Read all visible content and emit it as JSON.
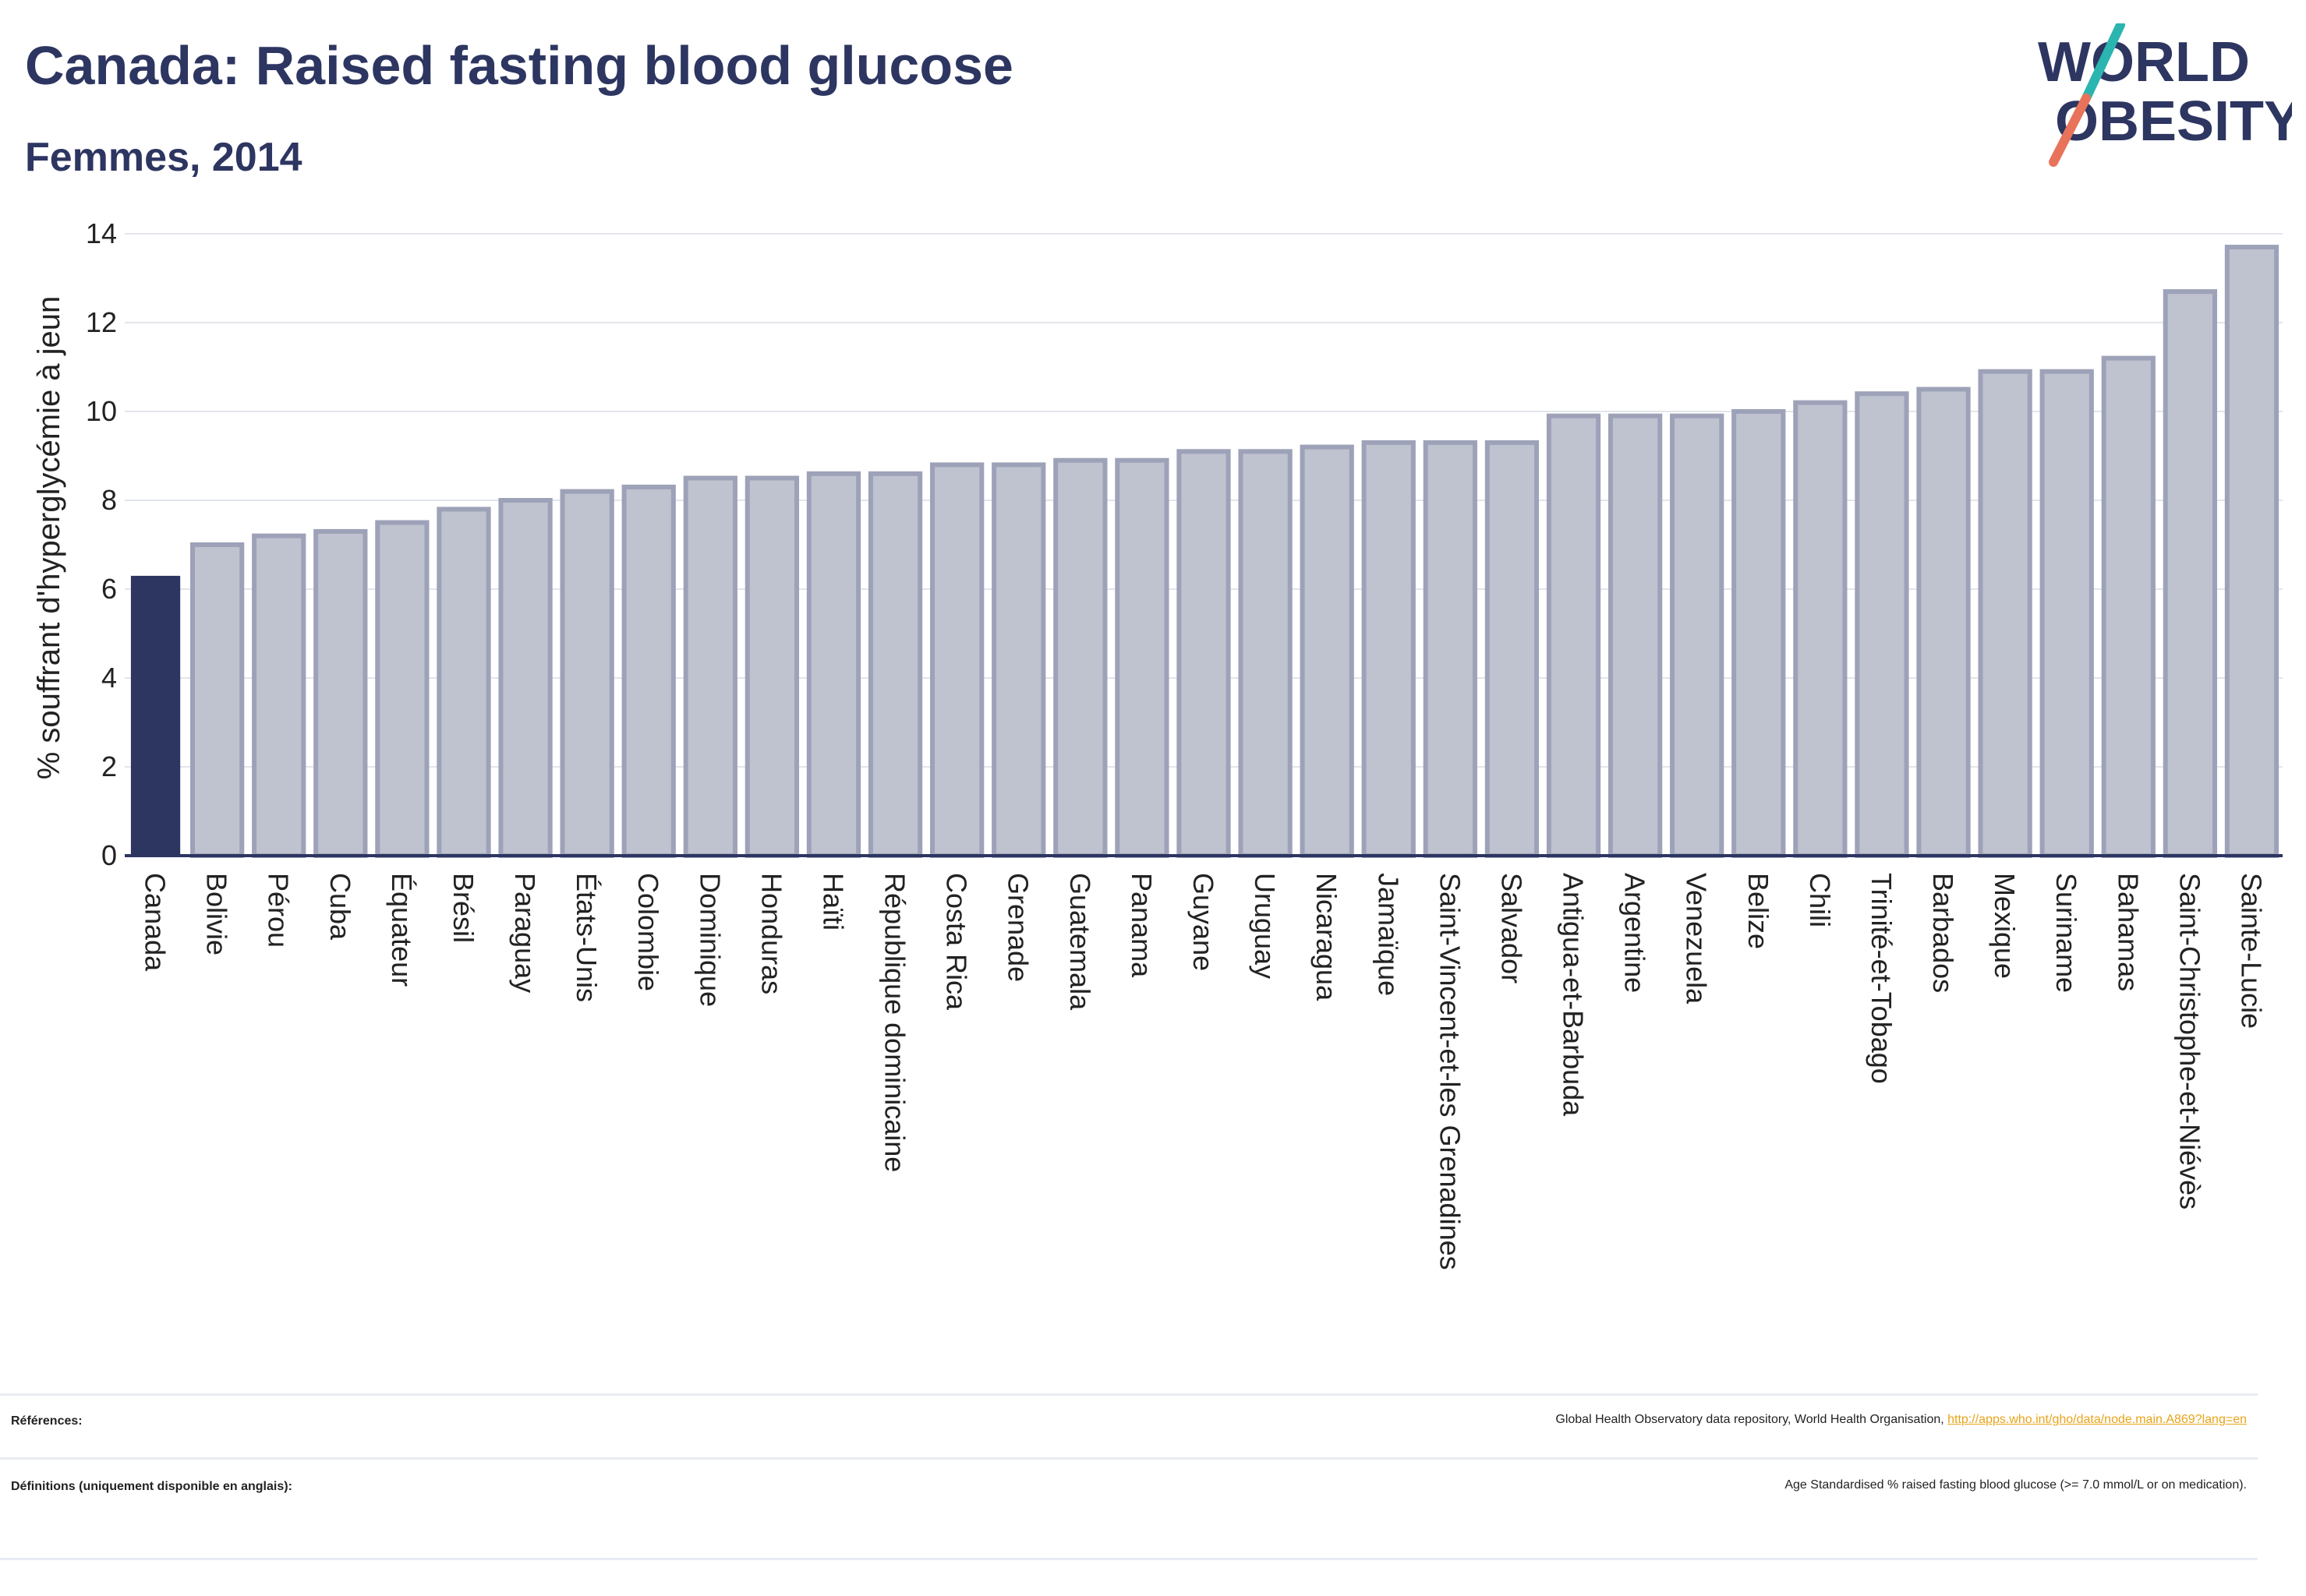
{
  "header": {
    "title": "Canada: Raised fasting blood glucose",
    "subtitle": "Femmes, 2014"
  },
  "logo": {
    "line1": "WORLD",
    "line2": "OBESITY",
    "text_color": "#2d3561",
    "slash_top_color": "#2bb5b0",
    "slash_bottom_color": "#e8735a"
  },
  "colors": {
    "highlight": "#2d3561",
    "bar_fill": "#bfc2cf",
    "bar_stroke": "#9da2b8",
    "grid": "#e3e5ec",
    "axis": "#2d3561"
  },
  "chart_data": {
    "type": "bar",
    "title": "",
    "xlabel": "",
    "ylabel": "% souffrant d'hyperglycémie à jeun",
    "ylim": [
      0,
      14
    ],
    "yticks": [
      0,
      2,
      4,
      6,
      8,
      10,
      12,
      14
    ],
    "grid": true,
    "highlight_category": "Canada",
    "categories": [
      "Canada",
      "Bolivie",
      "Pérou",
      "Cuba",
      "Équateur",
      "Brésil",
      "Paraguay",
      "États-Unis",
      "Colombie",
      "Dominique",
      "Honduras",
      "Haïti",
      "République dominicaine",
      "Costa Rica",
      "Grenade",
      "Guatemala",
      "Panama",
      "Guyane",
      "Uruguay",
      "Nicaragua",
      "Jamaïque",
      "Saint-Vincent-et-les Grenadines",
      "Salvador",
      "Antigua-et-Barbuda",
      "Argentine",
      "Venezuela",
      "Belize",
      "Chili",
      "Trinité-et-Tobago",
      "Barbados",
      "Mexique",
      "Suriname",
      "Bahamas",
      "Saint-Christophe-et-Niévès",
      "Sainte-Lucie"
    ],
    "values": [
      6.3,
      7.0,
      7.2,
      7.3,
      7.5,
      7.8,
      8.0,
      8.2,
      8.3,
      8.5,
      8.5,
      8.6,
      8.6,
      8.8,
      8.8,
      8.9,
      8.9,
      9.1,
      9.1,
      9.2,
      9.3,
      9.3,
      9.3,
      9.9,
      9.9,
      9.9,
      10.0,
      10.2,
      10.4,
      10.5,
      10.9,
      10.9,
      11.2,
      12.7,
      13.7
    ]
  },
  "footer": {
    "references_label": "Références:",
    "references_text": "Global Health Observatory data repository, World Health Organisation, ",
    "references_link": "http://apps.who.int/gho/data/node.main.A869?lang=en",
    "definitions_label": "Définitions (uniquement disponible en anglais):",
    "definitions_text": "Age Standardised % raised fasting blood glucose (>= 7.0 mmol/L or on medication)."
  }
}
